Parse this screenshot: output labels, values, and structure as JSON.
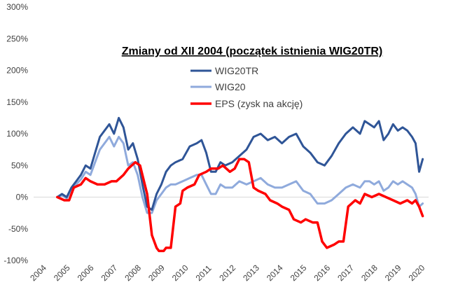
{
  "chart_data": {
    "type": "line",
    "title": "Zmiany od XII 2004 (początek istnienia WIG20TR)",
    "xlabel": "",
    "ylabel": "",
    "xlim": [
      2004,
      2020.7
    ],
    "ylim": [
      -100,
      300
    ],
    "y_ticks": [
      -100,
      -50,
      0,
      50,
      100,
      150,
      200,
      250,
      300
    ],
    "y_tick_labels": [
      "-100%",
      "-50%",
      "0%",
      "50%",
      "100%",
      "150%",
      "200%",
      "250%",
      "300%"
    ],
    "x_ticks": [
      2004,
      2005,
      2006,
      2007,
      2008,
      2009,
      2010,
      2011,
      2012,
      2013,
      2014,
      2015,
      2016,
      2017,
      2018,
      2019,
      2020
    ],
    "x_tick_labels": [
      "2004",
      "2005",
      "2006",
      "2007",
      "2008",
      "2009",
      "2010",
      "2011",
      "2012",
      "2013",
      "2014",
      "2015",
      "2016",
      "2017",
      "2018",
      "2019",
      "2020"
    ],
    "grid": false,
    "legend_position": "top-center",
    "series": [
      {
        "name": "WIG20TR",
        "color": "#2f5597",
        "x": [
          2005.0,
          2005.2,
          2005.4,
          2005.6,
          2005.8,
          2006.0,
          2006.2,
          2006.4,
          2006.6,
          2006.8,
          2007.0,
          2007.2,
          2007.4,
          2007.6,
          2007.8,
          2008.0,
          2008.2,
          2008.4,
          2008.6,
          2008.8,
          2009.0,
          2009.2,
          2009.4,
          2009.6,
          2009.8,
          2010.0,
          2010.3,
          2010.6,
          2010.9,
          2011.1,
          2011.3,
          2011.5,
          2011.7,
          2011.9,
          2012.1,
          2012.4,
          2012.7,
          2013.0,
          2013.3,
          2013.6,
          2013.9,
          2014.2,
          2014.5,
          2014.8,
          2015.1,
          2015.4,
          2015.7,
          2016.0,
          2016.3,
          2016.6,
          2016.9,
          2017.2,
          2017.5,
          2017.8,
          2018.0,
          2018.2,
          2018.4,
          2018.6,
          2018.8,
          2019.0,
          2019.2,
          2019.4,
          2019.6,
          2019.8,
          2020.0,
          2020.15,
          2020.3,
          2020.45
        ],
        "y": [
          0,
          5,
          0,
          15,
          25,
          35,
          50,
          45,
          70,
          95,
          105,
          115,
          100,
          125,
          110,
          75,
          85,
          60,
          20,
          -15,
          -20,
          5,
          20,
          40,
          50,
          55,
          60,
          80,
          85,
          90,
          70,
          40,
          40,
          55,
          50,
          55,
          65,
          75,
          95,
          100,
          90,
          95,
          85,
          95,
          100,
          80,
          70,
          55,
          50,
          65,
          85,
          100,
          110,
          100,
          120,
          115,
          110,
          120,
          90,
          100,
          115,
          105,
          110,
          105,
          95,
          85,
          40,
          60
        ]
      },
      {
        "name": "WIG20",
        "color": "#8faadc",
        "x": [
          2005.0,
          2005.2,
          2005.4,
          2005.6,
          2005.8,
          2006.0,
          2006.2,
          2006.4,
          2006.6,
          2006.8,
          2007.0,
          2007.2,
          2007.4,
          2007.6,
          2007.8,
          2008.0,
          2008.2,
          2008.4,
          2008.6,
          2008.8,
          2009.0,
          2009.2,
          2009.4,
          2009.6,
          2009.8,
          2010.0,
          2010.3,
          2010.6,
          2010.9,
          2011.1,
          2011.3,
          2011.5,
          2011.7,
          2011.9,
          2012.1,
          2012.4,
          2012.7,
          2013.0,
          2013.3,
          2013.6,
          2013.9,
          2014.2,
          2014.5,
          2014.8,
          2015.1,
          2015.4,
          2015.7,
          2016.0,
          2016.3,
          2016.6,
          2016.9,
          2017.2,
          2017.5,
          2017.8,
          2018.0,
          2018.2,
          2018.4,
          2018.6,
          2018.8,
          2019.0,
          2019.2,
          2019.4,
          2019.6,
          2019.8,
          2020.0,
          2020.15,
          2020.3,
          2020.45
        ],
        "y": [
          0,
          3,
          -2,
          12,
          20,
          28,
          40,
          35,
          55,
          75,
          85,
          95,
          80,
          95,
          85,
          50,
          55,
          35,
          0,
          -25,
          -25,
          -5,
          5,
          15,
          20,
          20,
          25,
          30,
          35,
          35,
          20,
          5,
          5,
          20,
          15,
          15,
          25,
          20,
          25,
          30,
          20,
          15,
          15,
          20,
          25,
          10,
          5,
          -10,
          -10,
          -5,
          5,
          15,
          20,
          15,
          25,
          25,
          20,
          25,
          10,
          15,
          25,
          20,
          25,
          20,
          15,
          5,
          -15,
          -10
        ]
      },
      {
        "name": "EPS (zysk na akcję)",
        "color": "#ff0000",
        "x": [
          2005.0,
          2005.3,
          2005.5,
          2005.7,
          2006.0,
          2006.2,
          2006.4,
          2006.7,
          2007.0,
          2007.3,
          2007.5,
          2007.8,
          2008.0,
          2008.3,
          2008.5,
          2008.7,
          2008.8,
          2009.0,
          2009.2,
          2009.3,
          2009.5,
          2009.6,
          2009.8,
          2010.0,
          2010.2,
          2010.3,
          2010.5,
          2010.8,
          2011.0,
          2011.3,
          2011.5,
          2011.8,
          2012.0,
          2012.3,
          2012.5,
          2012.7,
          2012.9,
          2013.1,
          2013.3,
          2013.5,
          2013.8,
          2014.0,
          2014.3,
          2014.5,
          2014.8,
          2015.0,
          2015.3,
          2015.5,
          2015.8,
          2016.0,
          2016.2,
          2016.4,
          2016.7,
          2016.9,
          2017.1,
          2017.3,
          2017.6,
          2017.8,
          2018.0,
          2018.3,
          2018.6,
          2018.9,
          2019.2,
          2019.5,
          2019.8,
          2020.0,
          2020.15,
          2020.3,
          2020.45
        ],
        "y": [
          0,
          -5,
          -5,
          15,
          20,
          30,
          25,
          20,
          20,
          25,
          25,
          35,
          45,
          55,
          50,
          20,
          5,
          -60,
          -80,
          -85,
          -85,
          -80,
          -80,
          -15,
          -10,
          10,
          15,
          20,
          35,
          40,
          45,
          45,
          50,
          40,
          45,
          60,
          60,
          55,
          15,
          10,
          5,
          -5,
          -10,
          -15,
          -20,
          -35,
          -40,
          -35,
          -40,
          -40,
          -70,
          -80,
          -75,
          -70,
          -70,
          -15,
          -5,
          -10,
          5,
          0,
          5,
          0,
          -5,
          -10,
          -5,
          -10,
          -5,
          -15,
          -30
        ]
      }
    ]
  }
}
